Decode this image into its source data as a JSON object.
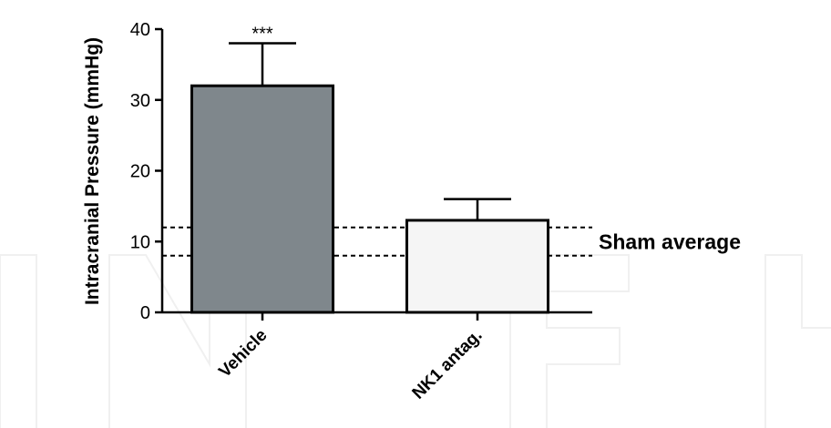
{
  "chart_data": {
    "type": "bar",
    "categories": [
      "Vehicle",
      "NK1 antag."
    ],
    "values": [
      32,
      13
    ],
    "errors": [
      6,
      3
    ],
    "bar_colors": [
      "#7f878c",
      "#f5f5f5"
    ],
    "ylabel": "Intracranial Pressure (mmHg)",
    "xlabel": "",
    "ylim": [
      0,
      40
    ],
    "yticks": [
      0,
      10,
      20,
      30,
      40
    ],
    "significance": [
      "***",
      ""
    ],
    "reference_lines": [
      12,
      8
    ],
    "reference_label": "Sham average",
    "grid": false,
    "legend": "none"
  },
  "watermark": "IntechOpen"
}
